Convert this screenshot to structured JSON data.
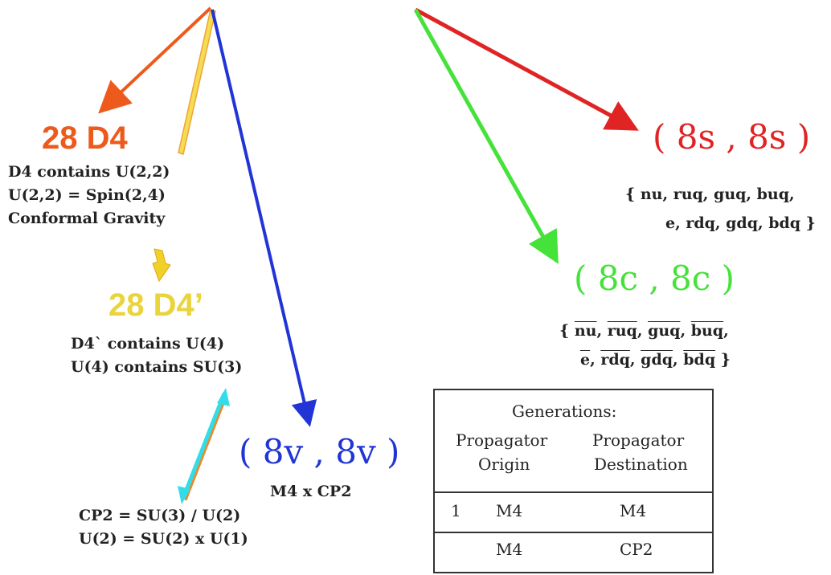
{
  "colors": {
    "orange": "#ee5a1b",
    "yellow": "#e9d43c",
    "blue": "#2135d6",
    "red": "#e02424",
    "green": "#45e23a",
    "cyan": "#33dde8",
    "text": "#222222"
  },
  "nodes": {
    "d4": {
      "title": "28 D4",
      "lines": [
        "D4 contains U(2,2)",
        "U(2,2) = Spin(2,4)",
        "Conformal Gravity"
      ]
    },
    "d4prime": {
      "title": "28 D4’",
      "lines": [
        "D4` contains U(4)",
        "U(4) contains SU(3)"
      ]
    },
    "cp2": {
      "lines": [
        "CP2 = SU(3) / U(2)",
        "U(2) = SU(2) x U(1)"
      ]
    },
    "v8": {
      "title": "( 8v , 8v )",
      "subtitle": "M4 x CP2"
    },
    "s8": {
      "title": "( 8s , 8s )",
      "line1": "{ nu, ruq, guq, buq,",
      "line2": "e, rdq, gdq, bdq }"
    },
    "c8": {
      "title": "( 8c , 8c )",
      "open": "{",
      "row1": [
        "nu",
        "ruq",
        "guq",
        "buq"
      ],
      "row2": [
        "e",
        "rdq",
        "gdq",
        "bdq"
      ],
      "close": "}"
    }
  },
  "generations_table": {
    "title": "Generations:",
    "col1": [
      "Propagator",
      "Origin"
    ],
    "col2": [
      "Propagator",
      "Destination"
    ],
    "rows": [
      {
        "gen": "1",
        "origin": "M4",
        "destination": "M4"
      },
      {
        "gen": "",
        "origin": "M4",
        "destination": "CP2"
      }
    ]
  }
}
